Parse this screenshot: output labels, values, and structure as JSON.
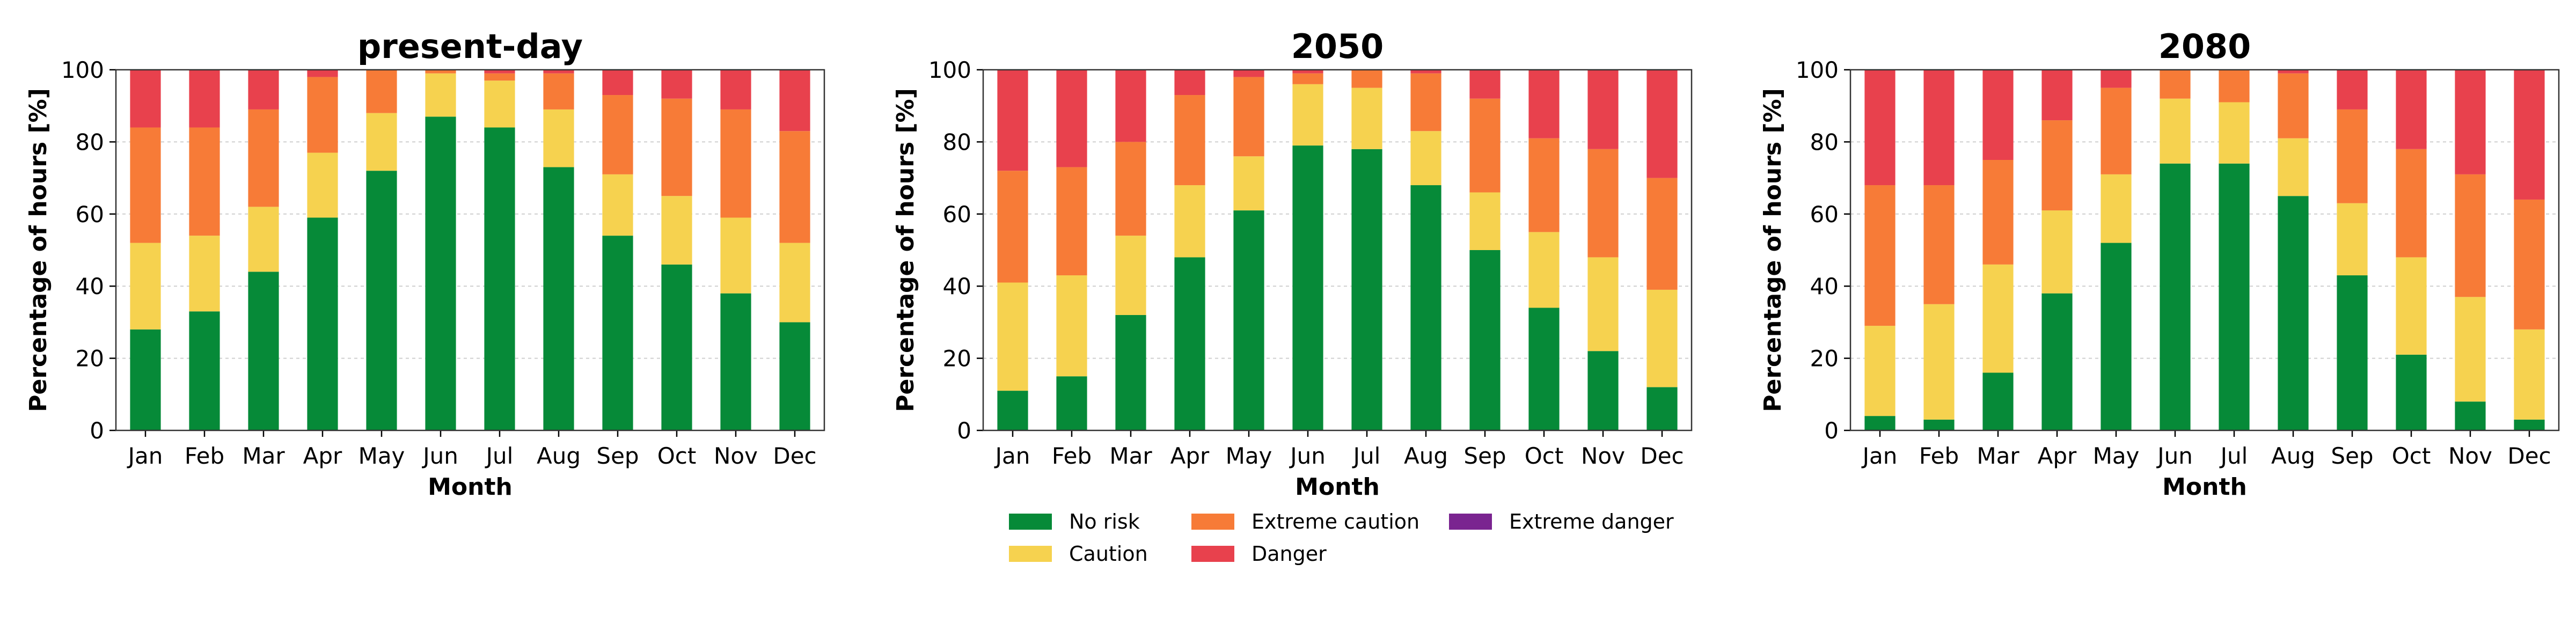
{
  "chart_data": [
    {
      "type": "bar",
      "stacked": true,
      "title": "present-day",
      "xlabel": "Month",
      "ylabel": "Percentage of hours [%]",
      "ylim": [
        0,
        100
      ],
      "yticks": [
        0,
        20,
        40,
        60,
        80,
        100
      ],
      "grid": "horizontal dashed",
      "categories": [
        "Jan",
        "Feb",
        "Mar",
        "Apr",
        "May",
        "Jun",
        "Jul",
        "Aug",
        "Sep",
        "Oct",
        "Nov",
        "Dec"
      ],
      "series": [
        {
          "name": "No risk",
          "values": [
            28,
            33,
            44,
            59,
            72,
            87,
            84,
            73,
            54,
            46,
            38,
            30
          ]
        },
        {
          "name": "Caution",
          "values": [
            24,
            21,
            18,
            18,
            16,
            12,
            13,
            16,
            17,
            19,
            21,
            22
          ]
        },
        {
          "name": "Extreme caution",
          "values": [
            32,
            30,
            27,
            21,
            12,
            1,
            2,
            10,
            22,
            27,
            30,
            31
          ]
        },
        {
          "name": "Danger",
          "values": [
            16,
            16,
            11,
            2,
            0,
            0,
            1,
            1,
            7,
            8,
            11,
            17
          ]
        },
        {
          "name": "Extreme danger",
          "values": [
            0,
            0,
            0,
            0,
            0,
            0,
            0,
            0,
            0,
            0,
            0,
            0
          ]
        }
      ]
    },
    {
      "type": "bar",
      "stacked": true,
      "title": "2050",
      "xlabel": "Month",
      "ylabel": "Percentage of hours [%]",
      "ylim": [
        0,
        100
      ],
      "yticks": [
        0,
        20,
        40,
        60,
        80,
        100
      ],
      "grid": "horizontal dashed",
      "categories": [
        "Jan",
        "Feb",
        "Mar",
        "Apr",
        "May",
        "Jun",
        "Jul",
        "Aug",
        "Sep",
        "Oct",
        "Nov",
        "Dec"
      ],
      "series": [
        {
          "name": "No risk",
          "values": [
            11,
            15,
            32,
            48,
            61,
            79,
            78,
            68,
            50,
            34,
            22,
            12
          ]
        },
        {
          "name": "Caution",
          "values": [
            30,
            28,
            22,
            20,
            15,
            17,
            17,
            15,
            16,
            21,
            26,
            27
          ]
        },
        {
          "name": "Extreme caution",
          "values": [
            31,
            30,
            26,
            25,
            22,
            3,
            5,
            16,
            26,
            26,
            30,
            31
          ]
        },
        {
          "name": "Danger",
          "values": [
            28,
            27,
            20,
            7,
            2,
            1,
            0,
            1,
            8,
            19,
            22,
            30
          ]
        },
        {
          "name": "Extreme danger",
          "values": [
            0,
            0,
            0,
            0,
            0,
            0,
            0,
            0,
            0,
            0,
            0,
            0
          ]
        }
      ]
    },
    {
      "type": "bar",
      "stacked": true,
      "title": "2080",
      "xlabel": "Month",
      "ylabel": "Percentage of hours [%]",
      "ylim": [
        0,
        100
      ],
      "yticks": [
        0,
        20,
        40,
        60,
        80,
        100
      ],
      "grid": "horizontal dashed",
      "categories": [
        "Jan",
        "Feb",
        "Mar",
        "Apr",
        "May",
        "Jun",
        "Jul",
        "Aug",
        "Sep",
        "Oct",
        "Nov",
        "Dec"
      ],
      "series": [
        {
          "name": "No risk",
          "values": [
            4,
            3,
            16,
            38,
            52,
            74,
            74,
            65,
            43,
            21,
            8,
            3
          ]
        },
        {
          "name": "Caution",
          "values": [
            25,
            32,
            30,
            23,
            19,
            18,
            17,
            16,
            20,
            27,
            29,
            25
          ]
        },
        {
          "name": "Extreme caution",
          "values": [
            39,
            33,
            29,
            25,
            24,
            8,
            9,
            18,
            26,
            30,
            34,
            36
          ]
        },
        {
          "name": "Danger",
          "values": [
            32,
            32,
            25,
            14,
            5,
            0,
            0,
            1,
            11,
            22,
            29,
            36
          ]
        },
        {
          "name": "Extreme danger",
          "values": [
            0,
            0,
            0,
            0,
            0,
            0,
            0,
            0,
            0,
            0,
            0,
            0
          ]
        }
      ]
    }
  ],
  "legend": {
    "placement": "bottom-center",
    "items": [
      {
        "label": "No risk",
        "color": "#068a38"
      },
      {
        "label": "Caution",
        "color": "#f6d24f"
      },
      {
        "label": "Extreme caution",
        "color": "#f77b37"
      },
      {
        "label": "Danger",
        "color": "#e8414d"
      },
      {
        "label": "Extreme danger",
        "color": "#7a2490"
      }
    ]
  },
  "colors": {
    "No risk": "#068a38",
    "Caution": "#f6d24f",
    "Extreme caution": "#f77b37",
    "Danger": "#e8414d",
    "Extreme danger": "#7a2490"
  }
}
